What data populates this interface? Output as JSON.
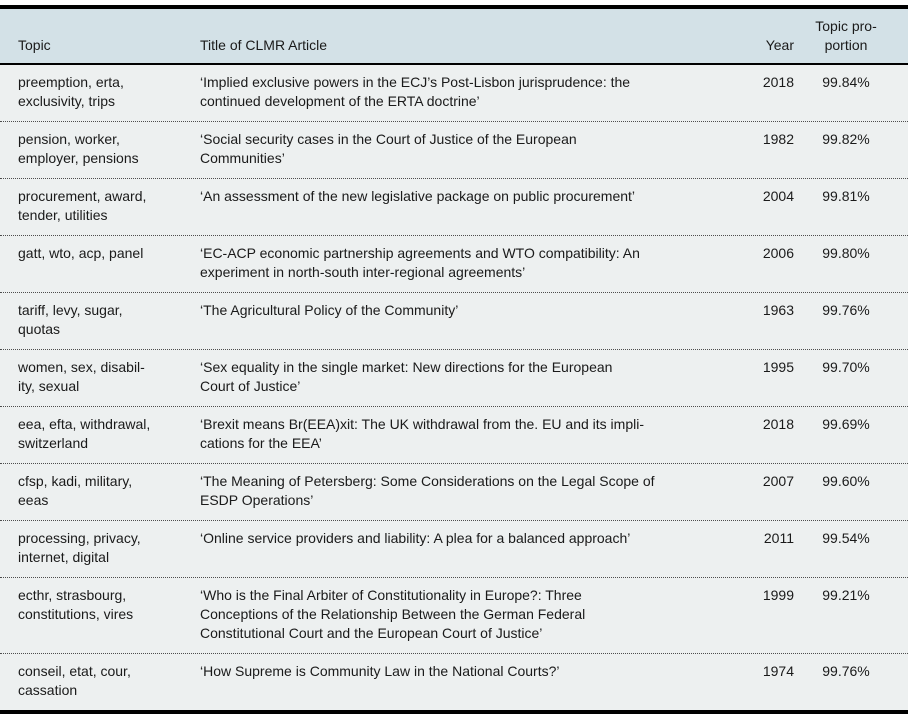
{
  "table": {
    "columns": {
      "topic": "Topic",
      "title": "Title of CLMR Article",
      "year": "Year",
      "proportion": "Topic pro-\nportion"
    },
    "rows": [
      {
        "topic": "preemption, erta,\nexclusivity, trips",
        "title": "‘Implied exclusive powers in the ECJ’s Post-Lisbon jurisprudence: the\ncontinued development of the ERTA doctrine’",
        "year": "2018",
        "proportion": "99.84%"
      },
      {
        "topic": "pension, worker,\nemployer, pensions",
        "title": "‘Social security cases in the Court of Justice of the European\nCommunities’",
        "year": "1982",
        "proportion": "99.82%"
      },
      {
        "topic": "procurement, award,\ntender, utilities",
        "title": "‘An assessment of the new legislative package on public procurement’",
        "year": "2004",
        "proportion": "99.81%"
      },
      {
        "topic": "gatt, wto, acp, panel",
        "title": "‘EC-ACP economic partnership agreements and WTO compatibility: An\nexperiment in north-south inter-regional agreements’",
        "year": "2006",
        "proportion": "99.80%"
      },
      {
        "topic": "tariff, levy, sugar,\nquotas",
        "title": "‘The Agricultural Policy of the Community’",
        "year": "1963",
        "proportion": "99.76%"
      },
      {
        "topic": "women, sex, disabil-\nity, sexual",
        "title": "‘Sex equality in the single market: New directions for the European\nCourt of Justice’",
        "year": "1995",
        "proportion": "99.70%"
      },
      {
        "topic": "eea, efta, withdrawal,\nswitzerland",
        "title": "‘Brexit means Br(EEA)xit: The UK withdrawal from the. EU and its impli-\ncations for the EEA’",
        "year": "2018",
        "proportion": "99.69%"
      },
      {
        "topic": "cfsp, kadi, military,\neeas",
        "title": "‘The Meaning of Petersberg: Some Considerations on the Legal Scope of\nESDP Operations’",
        "year": "2007",
        "proportion": "99.60%"
      },
      {
        "topic": "processing, privacy,\ninternet, digital",
        "title": "‘Online service providers and liability: A plea for a balanced approach’",
        "year": "2011",
        "proportion": "99.54%"
      },
      {
        "topic": "ecthr, strasbourg,\nconstitutions, vires",
        "title": "‘Who is the Final Arbiter of Constitutionality in Europe?: Three\nConceptions of the Relationship Between the German Federal\nConstitutional Court and the European Court of Justice’",
        "year": "1999",
        "proportion": "99.21%"
      },
      {
        "topic": "conseil, etat, cour,\ncassation",
        "title": "‘How Supreme is Community Law in the National Courts?’",
        "year": "1974",
        "proportion": "99.76%"
      }
    ]
  },
  "colors": {
    "header_bg": "#d3e1e7",
    "row_bg": "#edf0f0",
    "rule": "#000000",
    "divider_dotted": "#4d4d4d",
    "text": "#1a1a1a"
  }
}
